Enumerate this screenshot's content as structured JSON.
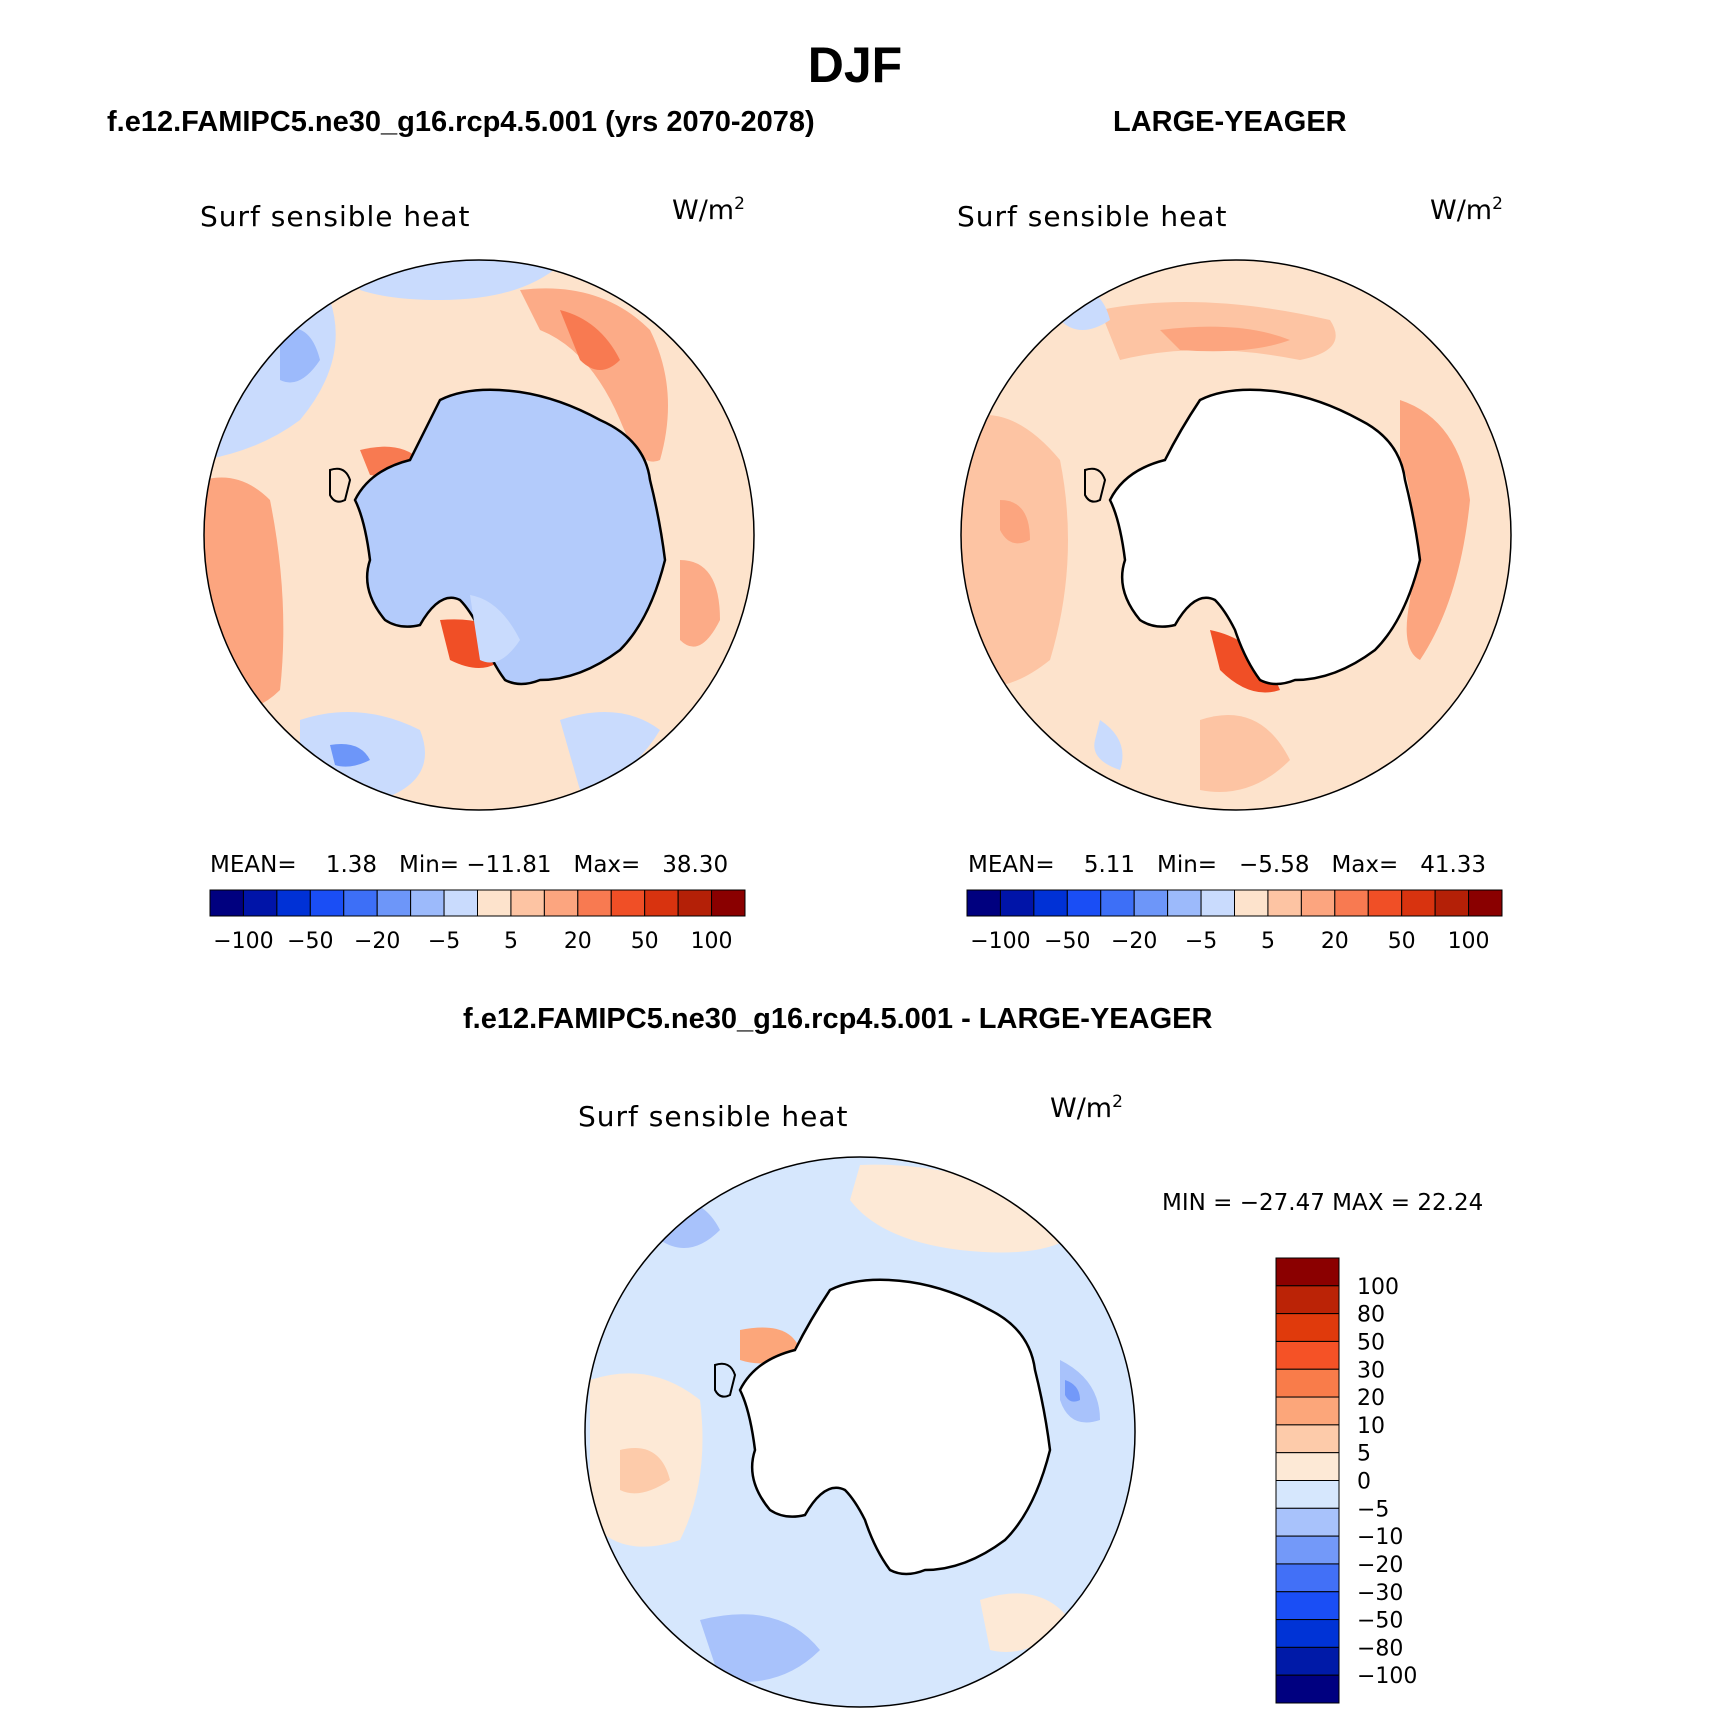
{
  "title": "DJF",
  "colors": {
    "scale": [
      "#00007f",
      "#0014a8",
      "#0031d6",
      "#1a4ef5",
      "#3d6ff7",
      "#6d96f9",
      "#9cbafb",
      "#c9dbfd",
      "#fde3cc",
      "#fdc4a3",
      "#fca57f",
      "#f87a51",
      "#f04f26",
      "#d8330f",
      "#b42007",
      "#8a0000"
    ],
    "diff_scale": [
      "#000080",
      "#001aa8",
      "#0033d6",
      "#1a4ef5",
      "#4270f7",
      "#7399f9",
      "#a8c2fb",
      "#d6e7fd",
      "#fde9d6",
      "#fdcbaa",
      "#fca67a",
      "#f97c4a",
      "#f55226",
      "#e03a0c",
      "#bb2306",
      "#8b0000"
    ],
    "land": "#ffffff",
    "coast": "#000000"
  },
  "chart_data": [
    {
      "type": "heatmap",
      "title": "f.e12.FAMIPC5.ne30_g16.rcp4.5.001 (yrs 2070-2078)",
      "variable": "Surf sensible heat",
      "units": "W/m",
      "units_sup": "2",
      "projection": "south polar stereographic",
      "stats": {
        "mean_label": "MEAN=",
        "mean": "1.38",
        "min_label": "Min=",
        "min": "−11.81",
        "max_label": "Max=",
        "max": "38.30"
      },
      "colorbar": {
        "orientation": "horizontal",
        "levels": [
          -100,
          -80,
          -50,
          -30,
          -20,
          -10,
          -5,
          0,
          5,
          10,
          20,
          30,
          50,
          80,
          100
        ],
        "tick_labels": [
          "−100",
          "−50",
          "−20",
          "−5",
          "5",
          "20",
          "50",
          "100"
        ]
      }
    },
    {
      "type": "heatmap",
      "title": "LARGE-YEAGER",
      "variable": "Surf sensible heat",
      "units": "W/m",
      "units_sup": "2",
      "projection": "south polar stereographic",
      "stats": {
        "mean_label": "MEAN=",
        "mean": "5.11",
        "min_label": "Min=",
        "min": "−5.58",
        "max_label": "Max=",
        "max": "41.33"
      },
      "colorbar": {
        "orientation": "horizontal",
        "levels": [
          -100,
          -80,
          -50,
          -30,
          -20,
          -10,
          -5,
          0,
          5,
          10,
          20,
          30,
          50,
          80,
          100
        ],
        "tick_labels": [
          "−100",
          "−50",
          "−20",
          "−5",
          "5",
          "20",
          "50",
          "100"
        ]
      }
    },
    {
      "type": "heatmap",
      "title": "f.e12.FAMIPC5.ne30_g16.rcp4.5.001 - LARGE-YEAGER",
      "variable": "Surf sensible heat",
      "units": "W/m",
      "units_sup": "2",
      "projection": "south polar stereographic",
      "stats": {
        "text": "MIN = −27.47  MAX =   22.24"
      },
      "colorbar": {
        "orientation": "vertical",
        "tick_labels": [
          "100",
          "80",
          "50",
          "30",
          "20",
          "10",
          "5",
          "0",
          "−5",
          "−10",
          "−20",
          "−30",
          "−50",
          "−80",
          "−100"
        ]
      }
    }
  ]
}
